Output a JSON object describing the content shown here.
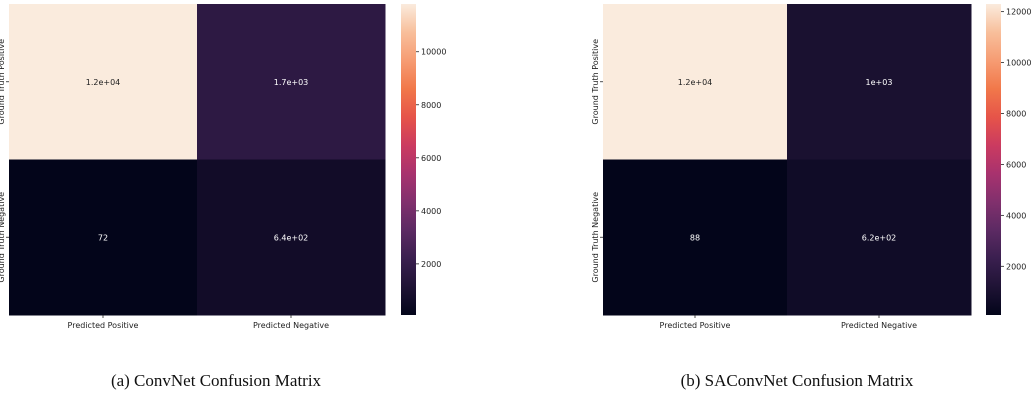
{
  "colors": {
    "colormap": [
      "#03051a",
      "#1f1335",
      "#3a1f4f",
      "#5c2a63",
      "#81306d",
      "#a8326e",
      "#cb3b60",
      "#e65449",
      "#f1784a",
      "#f69c73",
      "#f8bf9b",
      "#faebdd"
    ],
    "dark_text": "#222222",
    "light_text": "#ffffff"
  },
  "chart_data": [
    {
      "type": "heatmap",
      "caption": "(a) ConvNet Confusion Matrix",
      "row_labels": [
        "Ground Truth Positive",
        "Ground Truth Negative"
      ],
      "col_labels": [
        "Predicted Positive",
        "Predicted Negative"
      ],
      "values": [
        [
          11800,
          1700
        ],
        [
          72,
          640
        ]
      ],
      "annotations": [
        [
          "1.2e+04",
          "1.7e+03"
        ],
        [
          "72",
          "6.4e+02"
        ]
      ],
      "vmin": 72,
      "vmax": 11800,
      "colorbar_ticks": [
        2000,
        4000,
        6000,
        8000,
        10000
      ],
      "colorbar_tick_labels": [
        "2000",
        "4000",
        "6000",
        "8000",
        "10000"
      ]
    },
    {
      "type": "heatmap",
      "caption": "(b) SAConvNet Confusion Matrix",
      "row_labels": [
        "Ground Truth Positive",
        "Ground Truth Negative"
      ],
      "col_labels": [
        "Predicted Positive",
        "Predicted Negative"
      ],
      "values": [
        [
          12300,
          1000
        ],
        [
          88,
          620
        ]
      ],
      "annotations": [
        [
          "1.2e+04",
          "1e+03"
        ],
        [
          "88",
          "6.2e+02"
        ]
      ],
      "vmin": 88,
      "vmax": 12300,
      "colorbar_ticks": [
        2000,
        4000,
        6000,
        8000,
        10000,
        12000
      ],
      "colorbar_tick_labels": [
        "2000",
        "4000",
        "6000",
        "8000",
        "10000",
        "12000"
      ]
    }
  ]
}
